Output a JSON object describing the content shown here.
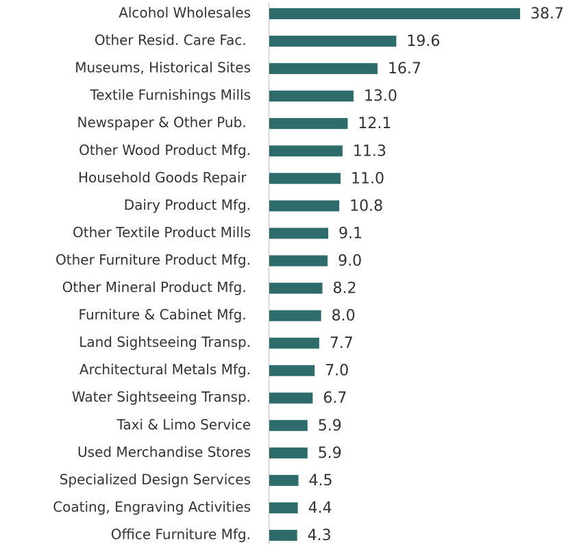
{
  "chart_data": {
    "type": "bar",
    "orientation": "horizontal",
    "color": "#2e6b6b",
    "categories": [
      "Alcohol Wholesales",
      "Other Resid. Care Fac. ",
      "Museums, Historical Sites",
      "Textile Furnishings Mills",
      "Newspaper & Other Pub. ",
      "Other Wood Product Mfg.",
      "Household Goods Repair ",
      "Dairy Product Mfg.",
      "Other Textile Product Mills",
      "Other Furniture Product Mfg.",
      "Other Mineral Product Mfg. ",
      "Furniture & Cabinet Mfg. ",
      "Land Sightseeing Transp.",
      "Architectural Metals Mfg.",
      "Water Sightseeing Transp.",
      "Taxi & Limo Service",
      "Used Merchandise Stores",
      "Specialized Design Services",
      "Coating, Engraving Activities",
      "Office Furniture Mfg."
    ],
    "values": [
      38.7,
      19.6,
      16.7,
      13.0,
      12.1,
      11.3,
      11.0,
      10.8,
      9.1,
      9.0,
      8.2,
      8.0,
      7.7,
      7.0,
      6.7,
      5.9,
      5.9,
      4.5,
      4.4,
      4.3
    ],
    "value_labels": [
      "38.7",
      "19.6",
      "16.7",
      "13.0",
      "12.1",
      "11.3",
      "11.0",
      "10.8",
      "9.1",
      "9.0",
      "8.2",
      "8.0",
      "7.7",
      "7.0",
      "6.7",
      "5.9",
      "5.9",
      "4.5",
      "4.4",
      "4.3"
    ]
  }
}
